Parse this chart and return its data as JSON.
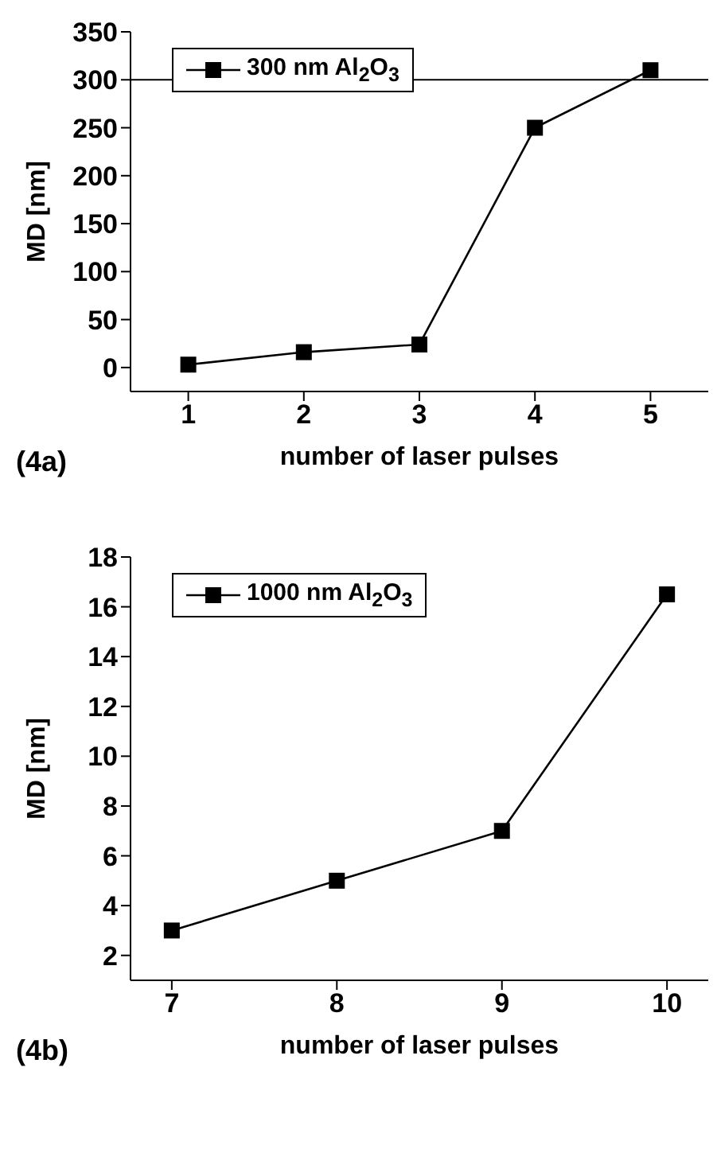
{
  "chart_data": [
    {
      "type": "line",
      "x": [
        1,
        2,
        3,
        4,
        5
      ],
      "series": [
        {
          "name": "300 nm Al$_{2}$O$_{3}$",
          "color": "#000000",
          "values": [
            3,
            16,
            24,
            250,
            310
          ]
        }
      ],
      "xlim": [
        0.5,
        5.5
      ],
      "xticks": [
        1,
        2,
        3,
        4,
        5
      ],
      "ylim": [
        -25,
        350
      ],
      "yticks": [
        0,
        50,
        100,
        150,
        200,
        250,
        300,
        350
      ],
      "xlabel": "number of laser pulses",
      "ylabel": "MD [nm]",
      "legend": "top left",
      "marker": "square",
      "line_style": "solid",
      "ref_lines": [
        {
          "axis": "y",
          "value": 300,
          "color": "#000000"
        }
      ],
      "annotations": [
        "(4a)"
      ]
    },
    {
      "type": "line",
      "x": [
        7,
        8,
        9,
        10
      ],
      "series": [
        {
          "name": "1000 nm Al$_{2}$O$_{3}$",
          "color": "#000000",
          "values": [
            3,
            5,
            7,
            16.5
          ]
        }
      ],
      "xlim": [
        6.75,
        10.25
      ],
      "xticks": [
        7,
        8,
        9,
        10
      ],
      "ylim": [
        1,
        18
      ],
      "yticks": [
        2,
        4,
        6,
        8,
        10,
        12,
        14,
        16,
        18
      ],
      "xlabel": "number of laser pulses",
      "ylabel": "MD [nm]",
      "legend": "top left",
      "marker": "square",
      "line_style": "solid",
      "annotations": [
        "(4b)"
      ]
    }
  ]
}
